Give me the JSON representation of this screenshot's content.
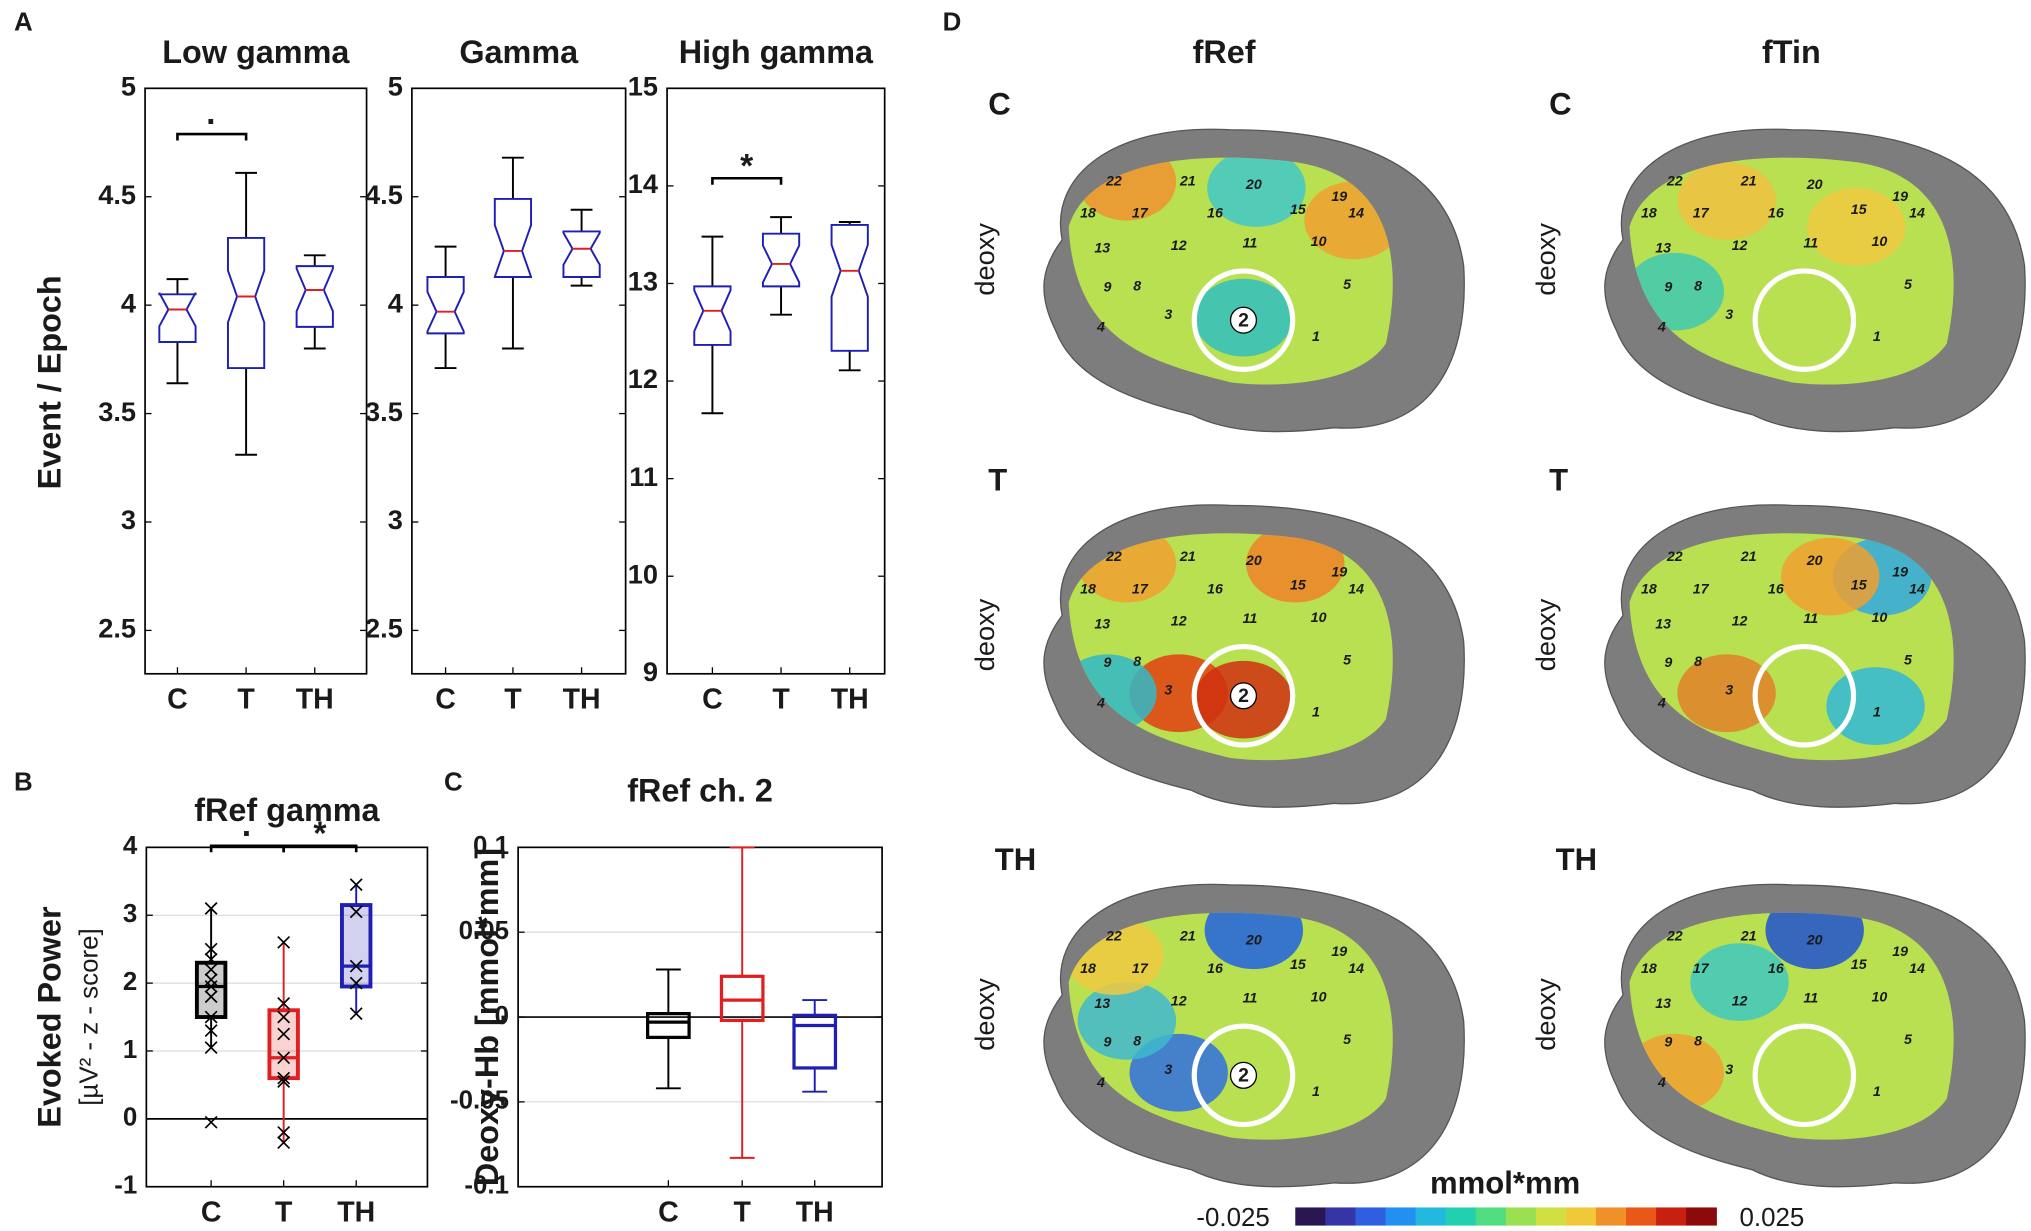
{
  "chart_data": [
    {
      "type": "box",
      "panel": "A",
      "title": "Low gamma",
      "ylabel": "Event / Epoch",
      "categories": [
        "C",
        "T",
        "TH"
      ],
      "ylim": [
        2.3,
        5
      ],
      "yticks": [
        2.5,
        3,
        3.5,
        4,
        4.5,
        5
      ],
      "notched": true,
      "color": "#1f1fb4",
      "median_color": "#e02020",
      "whisker_color": "#000000",
      "whisker_low": [
        3.64,
        3.31,
        3.8
      ],
      "q1": [
        3.83,
        3.71,
        3.9
      ],
      "median": [
        3.98,
        4.04,
        4.07
      ],
      "q3": [
        4.05,
        4.31,
        4.18
      ],
      "whisker_high": [
        4.12,
        4.61,
        4.23
      ],
      "significance": [
        {
          "from": 0,
          "to": 1,
          "label": "·",
          "color": "#000000"
        }
      ]
    },
    {
      "type": "box",
      "title": "Gamma",
      "categories": [
        "C",
        "T",
        "TH"
      ],
      "ylim": [
        2.3,
        5
      ],
      "yticks": [
        2.5,
        3,
        3.5,
        4,
        4.5,
        5
      ],
      "notched": true,
      "color": "#1f1fb4",
      "median_color": "#e02020",
      "whisker_color": "#000000",
      "whisker_low": [
        3.71,
        3.8,
        4.09
      ],
      "q1": [
        3.87,
        4.13,
        4.13
      ],
      "median": [
        3.97,
        4.25,
        4.26
      ],
      "q3": [
        4.13,
        4.49,
        4.34
      ],
      "whisker_high": [
        4.27,
        4.68,
        4.44
      ],
      "significance": []
    },
    {
      "type": "box",
      "title": "High gamma",
      "categories": [
        "C",
        "T",
        "TH"
      ],
      "ylim": [
        9,
        15
      ],
      "yticks": [
        9,
        10,
        11,
        12,
        13,
        14,
        15
      ],
      "notched": true,
      "color": "#1f1fb4",
      "median_color": "#e02020",
      "whisker_color": "#000000",
      "whisker_low": [
        11.67,
        12.68,
        12.11
      ],
      "q1": [
        12.37,
        12.97,
        12.31
      ],
      "median": [
        12.72,
        13.2,
        13.13
      ],
      "q3": [
        12.97,
        13.51,
        13.6
      ],
      "whisker_high": [
        13.48,
        13.68,
        13.63
      ],
      "significance": [
        {
          "from": 0,
          "to": 1,
          "label": "*",
          "color": "#e02020"
        }
      ]
    },
    {
      "type": "box_points",
      "panel": "B",
      "title": "fRef gamma",
      "ylabel": "Evoked Power",
      "ylabel_sub": "[µV² - z - score]",
      "categories": [
        "C",
        "T",
        "TH"
      ],
      "ylim": [
        -1,
        4
      ],
      "yticks": [
        -1,
        0,
        1,
        2,
        3,
        4
      ],
      "grid": true,
      "colors": [
        "#000000",
        "#e02020",
        "#1f1fb4"
      ],
      "whisker_low": [
        1.05,
        -0.35,
        1.55
      ],
      "q1": [
        1.5,
        0.6,
        1.95
      ],
      "median": [
        1.95,
        0.9,
        2.25
      ],
      "q3": [
        2.3,
        1.6,
        3.15
      ],
      "whisker_high": [
        3.1,
        2.6,
        3.45
      ],
      "points": [
        [
          3.1,
          2.5,
          2.35,
          2.2,
          2.05,
          1.95,
          1.8,
          1.5,
          1.3,
          1.05,
          -0.05
        ],
        [
          2.6,
          1.7,
          1.5,
          1.25,
          0.9,
          0.6,
          0.55,
          -0.2,
          -0.35
        ],
        [
          3.45,
          3.05,
          2.25,
          2.0,
          1.55
        ]
      ],
      "significance": [
        {
          "from": 0,
          "to": 1,
          "label": "·",
          "color": "#000000"
        },
        {
          "from": 1,
          "to": 2,
          "label": "*",
          "color": "#e02020"
        }
      ]
    },
    {
      "type": "box_plain",
      "panel": "C",
      "title": "fRef ch. 2",
      "ylabel": "Deoxy-Hb [mmol*mm]",
      "categories": [
        "C",
        "T",
        "TH"
      ],
      "ylim": [
        -0.1,
        0.1
      ],
      "yticks": [
        -0.1,
        -0.05,
        0,
        0.05,
        0.1
      ],
      "grid": true,
      "colors": [
        "#000000",
        "#e02020",
        "#1f1fb4"
      ],
      "whisker_low": [
        -0.042,
        -0.083,
        -0.044
      ],
      "q1": [
        -0.012,
        -0.002,
        -0.03
      ],
      "median": [
        -0.003,
        0.01,
        -0.005
      ],
      "q3": [
        0.002,
        0.024,
        0.001
      ],
      "whisker_high": [
        0.028,
        0.1,
        0.01
      ],
      "significance": []
    }
  ],
  "brain_maps": {
    "panel": "D",
    "columns": [
      "fRef",
      "fTin"
    ],
    "rows": [
      "C",
      "T",
      "TH"
    ],
    "side_label": "deoxy",
    "roi_label": "2",
    "channels": [
      "1",
      "3",
      "4",
      "5",
      "8",
      "9",
      "10",
      "11",
      "12",
      "13",
      "14",
      "15",
      "16",
      "17",
      "18",
      "19",
      "20",
      "21",
      "22"
    ],
    "colorbar": {
      "label": "mmol*mm",
      "min": -0.025,
      "max": 0.025,
      "colors": [
        "#2a1650",
        "#3535a8",
        "#2f5fe0",
        "#2290f0",
        "#22b8e0",
        "#22d0b0",
        "#50dc80",
        "#98e050",
        "#d0e040",
        "#f0c838",
        "#f09028",
        "#e85818",
        "#c82010",
        "#8c0a0a"
      ]
    }
  }
}
